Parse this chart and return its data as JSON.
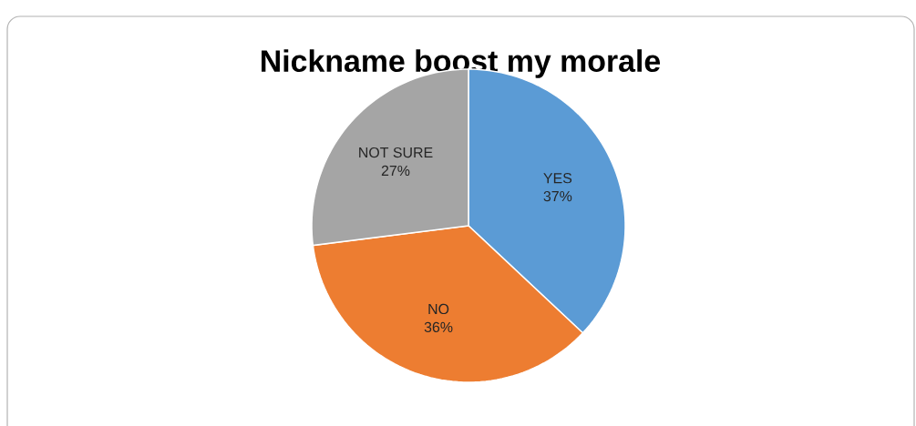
{
  "chart_data": {
    "type": "pie",
    "title": "Nickname boost my morale",
    "categories": [
      "YES",
      "NO",
      "NOT SURE"
    ],
    "values": [
      37,
      36,
      27
    ],
    "colors": [
      "#5b9bd5",
      "#ed7d31",
      "#a5a5a5"
    ],
    "value_labels": [
      "37%",
      "36%",
      "27%"
    ]
  }
}
